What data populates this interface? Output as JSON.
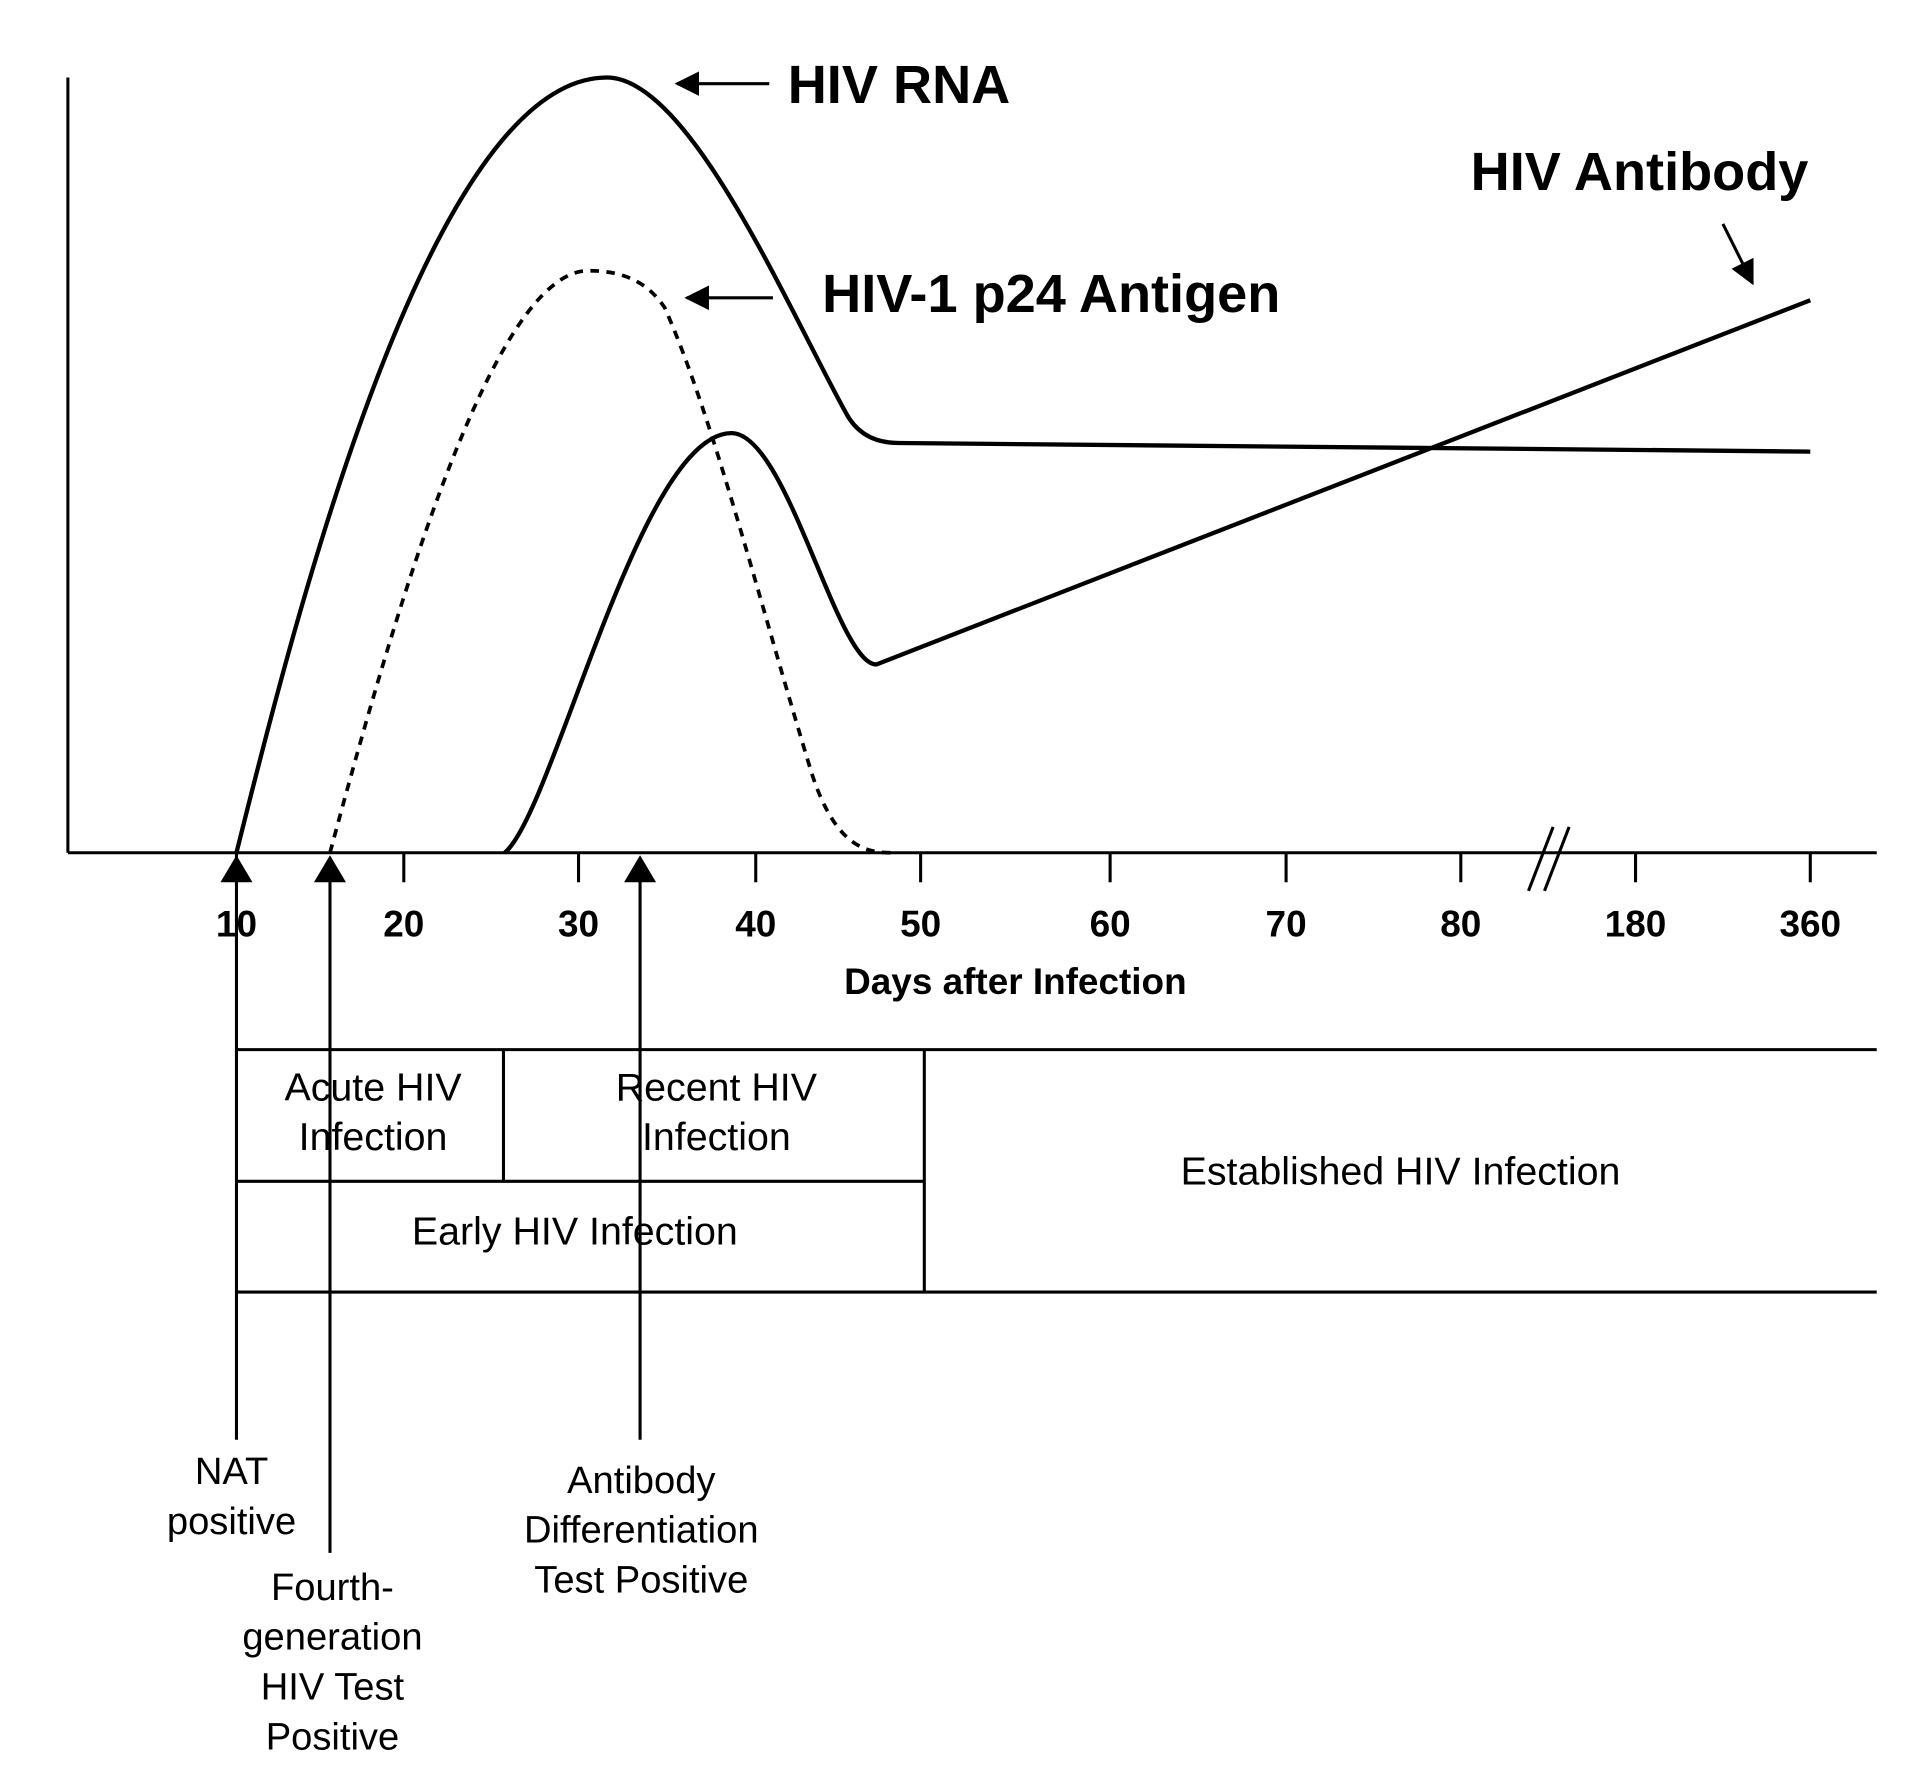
{
  "labels": {
    "rna": "HIV RNA",
    "p24": "HIV-1 p24 Antigen",
    "antibody": "HIV Antibody"
  },
  "x_axis": {
    "title": "Days after Infection",
    "ticks": [
      10,
      20,
      30,
      40,
      50,
      60,
      70,
      80,
      180,
      360
    ]
  },
  "stages": {
    "acute": [
      "Acute HIV",
      "Infection"
    ],
    "recent": [
      "Recent HIV",
      "Infection"
    ],
    "early": "Early HIV Infection",
    "established": "Established HIV Infection"
  },
  "markers": [
    {
      "lines": [
        "NAT",
        "positive"
      ]
    },
    {
      "lines": [
        "Fourth-",
        "generation",
        "HIV Test",
        "Positive"
      ]
    },
    {
      "lines": [
        "Antibody",
        "Differentiation",
        "Test Positive"
      ]
    }
  ]
}
